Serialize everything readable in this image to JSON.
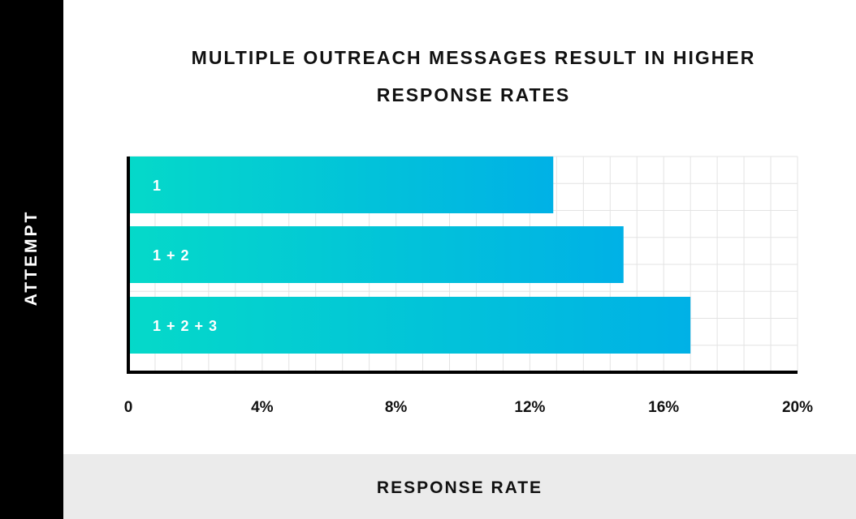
{
  "chart_data": {
    "type": "bar",
    "orientation": "horizontal",
    "title_lines": [
      "MULTIPLE OUTREACH MESSAGES RESULT IN HIGHER",
      "RESPONSE RATES"
    ],
    "xlabel": "RESPONSE RATE",
    "ylabel": "ATTEMPT",
    "categories": [
      "1",
      "1 + 2",
      "1 + 2 + 3"
    ],
    "values": [
      12.7,
      14.8,
      16.8
    ],
    "unit": "%",
    "xlim": [
      0,
      20
    ],
    "x_ticks": [
      "0",
      "4%",
      "8%",
      "12%",
      "16%",
      "20%"
    ],
    "x_tick_values": [
      0,
      4,
      8,
      12,
      16,
      20
    ],
    "grid": true,
    "colors": {
      "bar_start": "#05d9c9",
      "bar_end": "#00b1e6",
      "grid": "#e3e3e3",
      "axis": "#000000",
      "left_band": "#000000",
      "bottom_band": "#ebebeb"
    }
  }
}
